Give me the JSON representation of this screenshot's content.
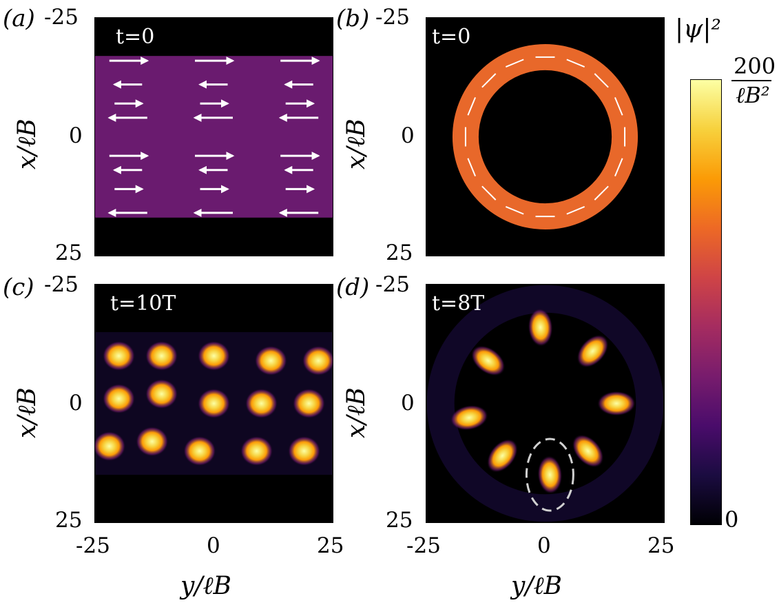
{
  "colors": {
    "background": "#000000",
    "band": "#6a1b6f",
    "ring": "#e8682a",
    "arrow": "#ffffff",
    "colormap": [
      "#000004",
      "#1b0c41",
      "#4a0c6b",
      "#781c6d",
      "#a52c60",
      "#cf4446",
      "#ed6925",
      "#fb9b06",
      "#f7d13d",
      "#fcffa4"
    ],
    "ellipse": "#d0d0d0"
  },
  "chart_data": [
    {
      "type": "heatmap",
      "panel_label": "(a)",
      "time_label": "t=0",
      "xlabel": "y/ℓB",
      "ylabel": "x/ℓB",
      "x_ticks": [
        "-25",
        "0",
        "25"
      ],
      "y_ticks": [
        "-25",
        "0",
        "25"
      ],
      "x_range": [
        -25,
        25
      ],
      "y_range": [
        -25,
        25
      ],
      "band_x_range": [
        -17,
        17
      ],
      "band_intensity": 80,
      "arrow_rows": [
        -16,
        -11,
        -7,
        -4,
        4,
        7,
        11,
        16
      ]
    },
    {
      "type": "heatmap",
      "panel_label": "(b)",
      "time_label": "t=0",
      "xlabel": "y/ℓB",
      "ylabel": "x/ℓB",
      "x_ticks": [
        "-25",
        "0",
        "25"
      ],
      "y_ticks": [
        "-25",
        "0",
        "25"
      ],
      "x_range": [
        -25,
        25
      ],
      "y_range": [
        -25,
        25
      ],
      "ring_inner_radius": 14,
      "ring_outer_radius": 19.5,
      "ring_intensity": 140
    },
    {
      "type": "heatmap",
      "panel_label": "(c)",
      "time_label": "t=10T",
      "xlabel": "y/ℓB",
      "ylabel": "x/ℓB",
      "x_ticks": [
        "-25",
        "0",
        "25"
      ],
      "y_ticks": [
        "-25",
        "0",
        "25"
      ],
      "x_range": [
        -25,
        25
      ],
      "y_range": [
        -25,
        25
      ],
      "blobs": [
        {
          "y": -20,
          "x": -10
        },
        {
          "y": -11,
          "x": -10
        },
        {
          "y": 0,
          "x": -10
        },
        {
          "y": 12,
          "x": -9
        },
        {
          "y": 22,
          "x": -9
        },
        {
          "y": -20,
          "x": -1
        },
        {
          "y": -11,
          "x": -2
        },
        {
          "y": 0,
          "x": 0
        },
        {
          "y": 10,
          "x": 0
        },
        {
          "y": 20,
          "x": 0
        },
        {
          "y": -22,
          "x": 9
        },
        {
          "y": -13,
          "x": 8
        },
        {
          "y": -3,
          "x": 10
        },
        {
          "y": 9,
          "x": 10
        },
        {
          "y": 19,
          "x": 10
        }
      ]
    },
    {
      "type": "heatmap",
      "panel_label": "(d)",
      "time_label": "t=8T",
      "xlabel": "y/ℓB",
      "ylabel": "x/ℓB",
      "x_ticks": [
        "-25",
        "0",
        "25"
      ],
      "y_ticks": [
        "-25",
        "0",
        "25"
      ],
      "x_range": [
        -25,
        25
      ],
      "y_range": [
        -25,
        25
      ],
      "blobs": [
        {
          "y": -1,
          "x": -16
        },
        {
          "y": 10,
          "x": -11
        },
        {
          "y": 15,
          "x": 0
        },
        {
          "y": 9,
          "x": 10
        },
        {
          "y": 1,
          "x": 15
        },
        {
          "y": -9,
          "x": 11
        },
        {
          "y": -16,
          "x": 3
        },
        {
          "y": -12,
          "x": -9
        }
      ],
      "highlight": {
        "y": 1,
        "x": 15
      }
    }
  ],
  "colorbar": {
    "label": "|ψ|²",
    "max_label_num": "200",
    "max_label_den": "ℓB²",
    "min_label": "0",
    "range": [
      0,
      200
    ]
  }
}
